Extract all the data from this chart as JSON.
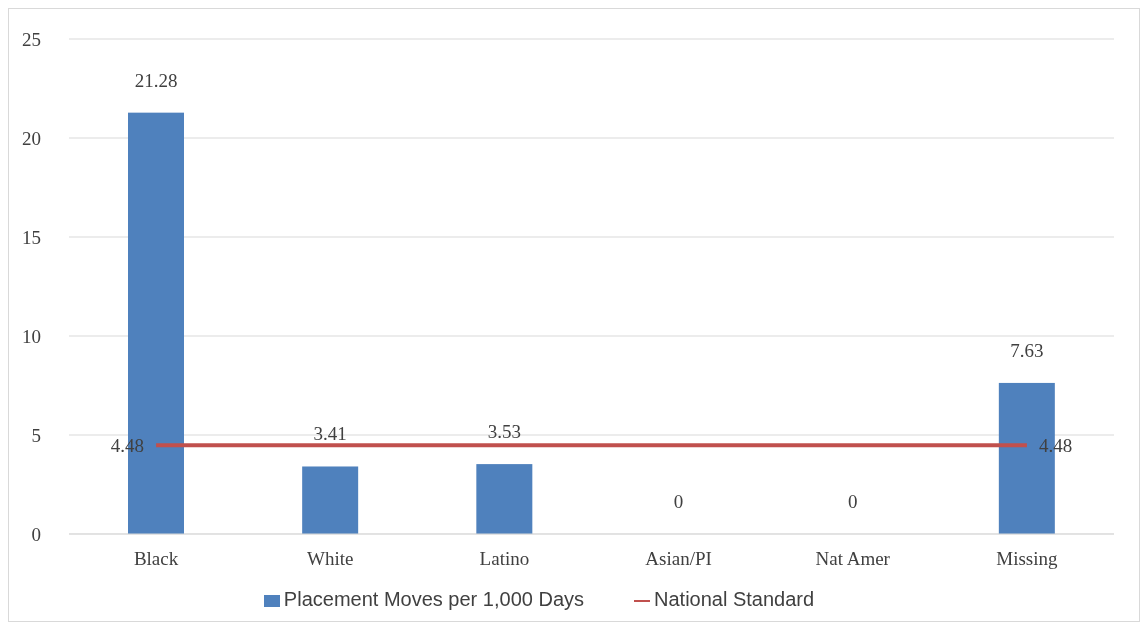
{
  "chart_data": {
    "type": "bar",
    "categories": [
      "Black",
      "White",
      "Latino",
      "Asian/PI",
      "Nat Amer",
      "Missing"
    ],
    "series": [
      {
        "name": "Placement Moves per 1,000 Days",
        "color": "#4f81bd",
        "values": [
          21.28,
          3.41,
          3.53,
          0,
          0,
          7.63
        ],
        "value_labels": [
          "21.28",
          "3.41",
          "3.53",
          "0",
          "0",
          "7.63"
        ]
      },
      {
        "name": "National Standard",
        "type": "line",
        "color": "#c0504d",
        "values": [
          4.48,
          4.48,
          4.48,
          4.48,
          4.48,
          4.48
        ],
        "value_labels": [
          "4.48",
          null,
          null,
          null,
          null,
          "4.48"
        ]
      }
    ],
    "ylim": [
      0,
      25
    ],
    "yticks": [
      0,
      5,
      10,
      15,
      20,
      25
    ],
    "grid": "y",
    "legend": "bottom",
    "marker": "none"
  }
}
